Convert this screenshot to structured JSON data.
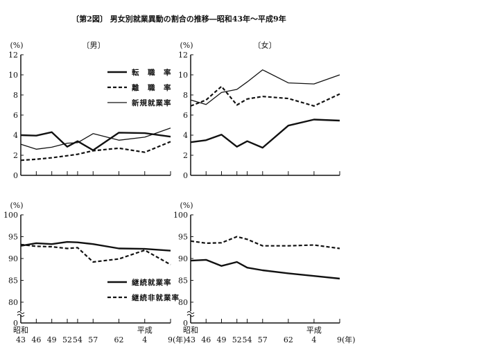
{
  "title": "〔第2図〕 男女別就業異動の割合の推移―昭和43年～平成9年",
  "x_labels": {
    "years": [
      "43",
      "46",
      "49",
      "52",
      "54",
      "57",
      "62",
      "4",
      "9(年)"
    ],
    "era_showa": "昭和",
    "era_heisei": "平成"
  },
  "chart_data": [
    {
      "type": "line",
      "panel": "top-left",
      "title": "〔男〕",
      "ylabel": "(%)",
      "ylim": [
        0,
        12
      ],
      "yticks": [
        "0",
        "2",
        "4",
        "6",
        "8",
        "10",
        "12"
      ],
      "x": [
        43,
        46,
        49,
        52,
        54,
        57,
        62,
        67,
        72
      ],
      "series": [
        {
          "name": "転　職　率",
          "style": "thick",
          "values": [
            4.0,
            3.95,
            4.3,
            2.85,
            3.4,
            2.5,
            4.25,
            4.2,
            3.85
          ]
        },
        {
          "name": "離　職　率",
          "style": "dashed",
          "values": [
            1.5,
            1.6,
            1.75,
            1.95,
            2.1,
            2.45,
            2.7,
            2.3,
            3.35
          ]
        },
        {
          "name": "新規就業率",
          "style": "thin",
          "values": [
            3.1,
            2.6,
            2.8,
            3.2,
            3.25,
            4.15,
            3.5,
            3.8,
            4.7
          ]
        }
      ],
      "legend": "top-right"
    },
    {
      "type": "line",
      "panel": "top-right",
      "title": "〔女〕",
      "ylabel": "(%)",
      "ylim": [
        0,
        12
      ],
      "yticks": [
        "0",
        "2",
        "4",
        "6",
        "8",
        "10",
        "12"
      ],
      "x": [
        43,
        46,
        49,
        52,
        54,
        57,
        62,
        67,
        72
      ],
      "series": [
        {
          "name": "転職率",
          "style": "thick",
          "values": [
            3.3,
            3.5,
            4.05,
            2.85,
            3.4,
            2.75,
            4.95,
            5.55,
            5.45
          ]
        },
        {
          "name": "離職率",
          "style": "dashed",
          "values": [
            6.9,
            7.5,
            8.85,
            7.0,
            7.6,
            7.85,
            7.65,
            6.9,
            8.1
          ]
        },
        {
          "name": "新規就業率",
          "style": "thin",
          "values": [
            7.5,
            7.05,
            8.25,
            8.55,
            9.3,
            10.5,
            9.2,
            9.1,
            10.0
          ]
        }
      ]
    },
    {
      "type": "line",
      "panel": "bottom-left",
      "ylabel": "(%)",
      "ylim": [
        80,
        100
      ],
      "axis_break": true,
      "yticks": [
        "0",
        "80",
        "85",
        "90",
        "95",
        "100"
      ],
      "x": [
        43,
        46,
        49,
        52,
        54,
        57,
        62,
        67,
        72
      ],
      "series": [
        {
          "name": "継続就業率",
          "style": "thick",
          "values": [
            92.9,
            93.5,
            93.3,
            93.8,
            93.7,
            93.3,
            92.3,
            92.2,
            91.8
          ]
        },
        {
          "name": "継続非就業率",
          "style": "dashed",
          "values": [
            93.2,
            92.8,
            92.7,
            92.3,
            92.5,
            89.2,
            89.9,
            91.9,
            88.6
          ]
        }
      ],
      "legend": "bottom-right"
    },
    {
      "type": "line",
      "panel": "bottom-right",
      "ylabel": "(%)",
      "ylim": [
        80,
        100
      ],
      "axis_break": true,
      "yticks": [
        "0",
        "80",
        "85",
        "90",
        "95",
        "100"
      ],
      "x": [
        43,
        46,
        49,
        52,
        54,
        57,
        62,
        67,
        72
      ],
      "series": [
        {
          "name": "継続就業率",
          "style": "thick",
          "values": [
            89.5,
            89.7,
            88.3,
            89.2,
            87.9,
            87.3,
            86.6,
            86.0,
            85.4
          ]
        },
        {
          "name": "継続非就業率",
          "style": "dashed",
          "values": [
            94.0,
            93.5,
            93.6,
            95.0,
            94.4,
            92.9,
            92.9,
            93.1,
            92.3
          ]
        }
      ]
    }
  ]
}
